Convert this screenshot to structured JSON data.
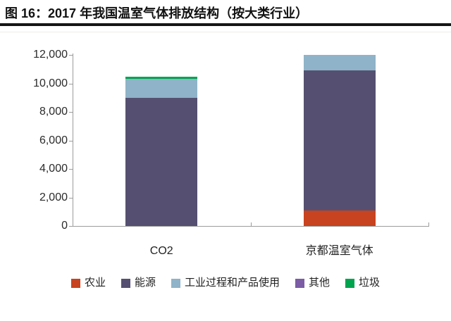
{
  "header": {
    "title": "图 16：2017 年我国温室气体排放结构（按大类行业）"
  },
  "chart_data": {
    "type": "bar",
    "stacked": true,
    "title": "2017 年我国温室气体排放结构（按大类行业）",
    "categories": [
      "CO2",
      "京都温室气体"
    ],
    "series": [
      {
        "key": "agriculture",
        "name": "农业",
        "color": "#c8431f",
        "values": [
          0,
          1100
        ]
      },
      {
        "key": "energy",
        "name": "能源",
        "color": "#555071",
        "values": [
          9000,
          9800
        ]
      },
      {
        "key": "industrial-process-and-product-use",
        "name": "工业过程和产品使用",
        "color": "#8fb3c8",
        "values": [
          1300,
          1100
        ]
      },
      {
        "key": "other",
        "name": "其他",
        "color": "#7b5ca5",
        "values": [
          0,
          0
        ]
      },
      {
        "key": "waste",
        "name": "垃圾",
        "color": "#00a44f",
        "values": [
          150,
          0
        ]
      }
    ],
    "totals_estimated": [
      10450,
      12000
    ],
    "xlabel": "",
    "ylabel": "",
    "ylim": [
      0,
      12000
    ],
    "yticks": [
      "0",
      "2,000",
      "4,000",
      "6,000",
      "8,000",
      "10,000",
      "12,000"
    ],
    "grid": false,
    "legend_position": "bottom"
  },
  "colors": {
    "axis": "#9b9b9b",
    "tick_label": "#2b2b2b",
    "title_text": "#111111",
    "title_rule": "#151515",
    "background": "#ffffff"
  }
}
